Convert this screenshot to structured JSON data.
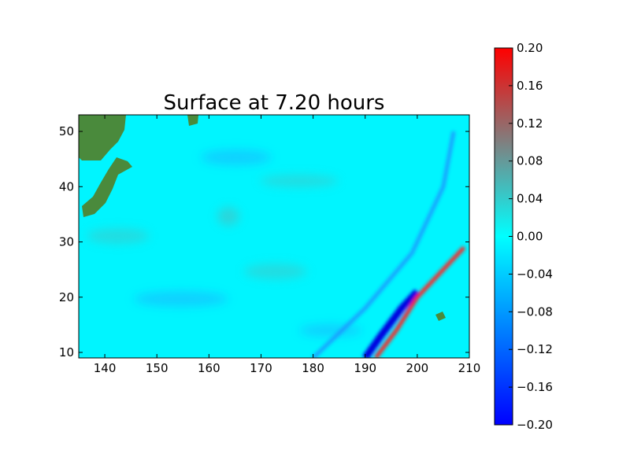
{
  "chart_data": {
    "type": "heatmap",
    "title": "Surface at 7.20 hours",
    "xlabel": "",
    "ylabel": "",
    "xlim": [
      135,
      210
    ],
    "ylim": [
      9,
      53
    ],
    "x_ticks": [
      140,
      150,
      160,
      170,
      180,
      190,
      200,
      210
    ],
    "y_ticks": [
      10,
      20,
      30,
      40,
      50
    ],
    "grid": false,
    "colorbar": {
      "range": [
        -0.2,
        0.2
      ],
      "ticks": [
        "-0.20",
        "-0.16",
        "-0.12",
        "-0.08",
        "-0.04",
        "0.00",
        "0.04",
        "0.08",
        "0.12",
        "0.16",
        "0.20"
      ],
      "colors": [
        "#0000ff",
        "#00ffff",
        "#ff0000"
      ]
    },
    "land_color": "#4a8a3c",
    "features": [
      {
        "name": "wave-front",
        "value": 0.2,
        "path": [
          [
            192,
            9
          ],
          [
            196,
            14
          ],
          [
            200,
            20
          ],
          [
            204,
            24
          ],
          [
            209,
            29
          ]
        ]
      },
      {
        "name": "trough",
        "value": -0.18,
        "path": [
          [
            190,
            9
          ],
          [
            193,
            13
          ],
          [
            197,
            18
          ],
          [
            200,
            21
          ]
        ]
      },
      {
        "name": "outer-ring",
        "value": -0.06,
        "path": [
          [
            180,
            9
          ],
          [
            190,
            18
          ],
          [
            199,
            28
          ],
          [
            205,
            40
          ],
          [
            207,
            50
          ]
        ]
      }
    ]
  }
}
